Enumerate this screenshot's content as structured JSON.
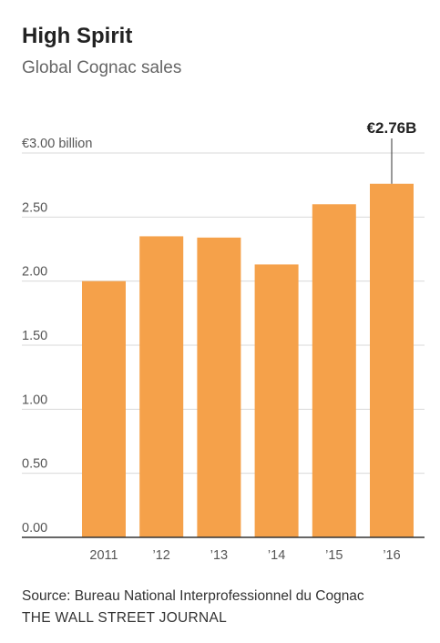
{
  "header": {
    "title": "High Spirit",
    "subtitle": "Global Cognac sales"
  },
  "footer": {
    "source": "Source: Bureau National Interprofessionnel du Cognac",
    "publisher": "THE WALL STREET JOURNAL"
  },
  "colors": {
    "bar": "#f5a14a",
    "grid": "#d9d9d9",
    "axis": "#333333"
  },
  "chart_data": {
    "type": "bar",
    "title": "High Spirit",
    "subtitle": "Global Cognac sales",
    "categories": [
      "2011",
      "’12",
      "’13",
      "’14",
      "’15",
      "’16"
    ],
    "values": [
      2.0,
      2.35,
      2.34,
      2.13,
      2.6,
      2.76
    ],
    "ylim": [
      0,
      3.0
    ],
    "yticks": [
      {
        "value": 3.0,
        "label": "€3.00 billion"
      },
      {
        "value": 2.5,
        "label": "2.50"
      },
      {
        "value": 2.0,
        "label": "2.00"
      },
      {
        "value": 1.5,
        "label": "1.50"
      },
      {
        "value": 1.0,
        "label": "1.00"
      },
      {
        "value": 0.5,
        "label": "0.50"
      },
      {
        "value": 0.0,
        "label": "0.00"
      }
    ],
    "grid": true,
    "annotation": {
      "category": "’16",
      "label": "€2.76B"
    }
  }
}
